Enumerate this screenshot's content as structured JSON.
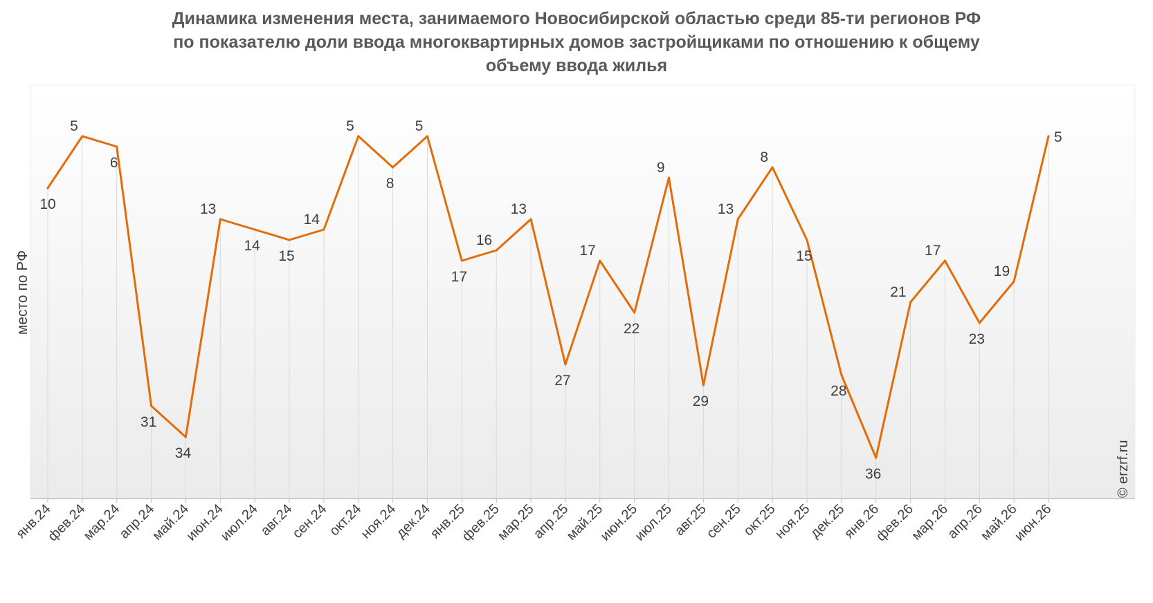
{
  "title_lines": [
    "Динамика изменения места, занимаемого Новосибирской областью среди 85-ти регионов РФ",
    "по показателю доли ввода многоквартирных домов застройщиками по отношению к общему",
    "объему ввода жилья"
  ],
  "credit": "© erzrf.ru",
  "colors": {
    "line": "#E36C09",
    "grid": "#D9D9D9",
    "text": "#404040",
    "title": "#595959"
  },
  "chart_data": {
    "type": "line",
    "ylabel": "место по РФ",
    "xlabel": "",
    "y_inverted": true,
    "ylim": [
      1,
      42
    ],
    "grid": "vertical drop lines",
    "categories": [
      "янв.24",
      "фев.24",
      "мар.24",
      "апр.24",
      "май.24",
      "июн.24",
      "июл.24",
      "авг.24",
      "сен.24",
      "окт.24",
      "ноя.24",
      "дек.24",
      "янв.25",
      "фев.25",
      "мар.25",
      "апр.25",
      "май.25",
      "июн.25",
      "июл.25",
      "авг.25",
      "сен.25",
      "окт.25",
      "ноя.25",
      "дек.25",
      "янв.26",
      "фев.26",
      "мар.26",
      "апр.26",
      "май.26",
      "июн.26"
    ],
    "series": [
      {
        "values": [
          10,
          5,
          6,
          31,
          34,
          13,
          14,
          15,
          14,
          5,
          8,
          5,
          17,
          16,
          13,
          27,
          17,
          22,
          9,
          29,
          13,
          8,
          15,
          28,
          36,
          21,
          17,
          23,
          19,
          5
        ]
      }
    ]
  }
}
